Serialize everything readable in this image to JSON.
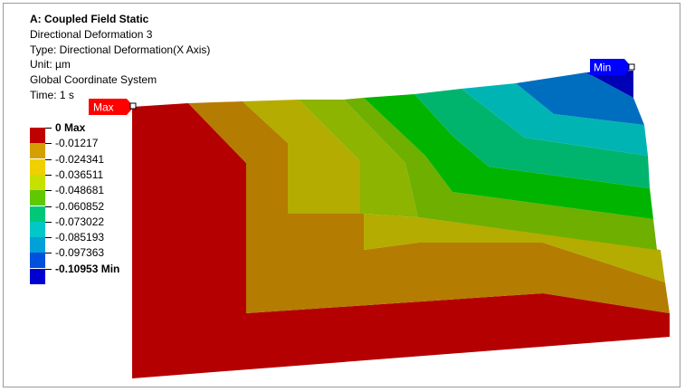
{
  "header": {
    "analysis_title": "A: Coupled Field Static",
    "result_name": "Directional Deformation 3",
    "type_line": "Type: Directional Deformation(X Axis)",
    "unit_line": "Unit: µm",
    "coord_line": "Global Coordinate System",
    "time_line": "Time: 1 s"
  },
  "legend": {
    "labels": [
      "0 Max",
      "-0.01217",
      "-0.024341",
      "-0.036511",
      "-0.048681",
      "-0.060852",
      "-0.073022",
      "-0.085193",
      "-0.097363",
      "-0.10953 Min"
    ],
    "colors": [
      "#c00000",
      "#d4a000",
      "#f0d000",
      "#c8e000",
      "#60c800",
      "#00c878",
      "#00c8c8",
      "#00a0d8",
      "#0050e0",
      "#0000d0"
    ]
  },
  "probes": {
    "max_label": "Max",
    "min_label": "Min"
  },
  "contour_colors": {
    "band0": "#b40000",
    "band1": "#b47c00",
    "band2": "#b4ac00",
    "band3": "#8cb400",
    "band4": "#6eaf00",
    "band5": "#00b400",
    "band6": "#00b46e",
    "band7": "#00b4b4",
    "band8": "#006ebe",
    "band9": "#0000b4",
    "max_tag": "#ff0000",
    "min_tag": "#0000ff"
  }
}
